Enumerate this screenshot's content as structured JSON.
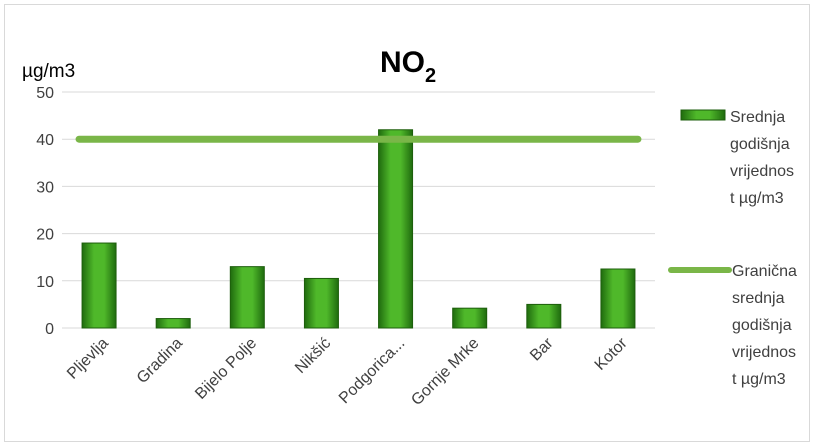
{
  "chart_data": {
    "type": "bar",
    "title": "NO",
    "title_subscript": "2",
    "ylabel": "µg/m3",
    "ylim": [
      0,
      50
    ],
    "yticks": [
      0,
      10,
      20,
      30,
      40,
      50
    ],
    "grid": true,
    "legend_position": "right",
    "categories": [
      "Pljevlja",
      "Gradina",
      "Bijelo Polje",
      "Nikšić",
      "Podgorica...",
      "Gornje Mrke",
      "Bar",
      "Kotor"
    ],
    "series": [
      {
        "name": "Srednja godišnja vrijednost µg/m3",
        "legend_lines": [
          "Srednja",
          "godišnja",
          "vrijednos",
          "t µg/m3"
        ],
        "kind": "bar",
        "color": "#3a9a1c",
        "values": [
          18,
          2,
          13,
          10.5,
          42,
          4.2,
          5,
          12.5
        ]
      },
      {
        "name": "Granična srednja godišnja vrijednost µg/m3",
        "legend_lines": [
          "Granična",
          "srednja",
          "godišnja",
          "vrijednos",
          "t µg/m3"
        ],
        "kind": "line",
        "color": "#7ab648",
        "values": [
          40,
          40,
          40,
          40,
          40,
          40,
          40,
          40
        ]
      }
    ]
  }
}
